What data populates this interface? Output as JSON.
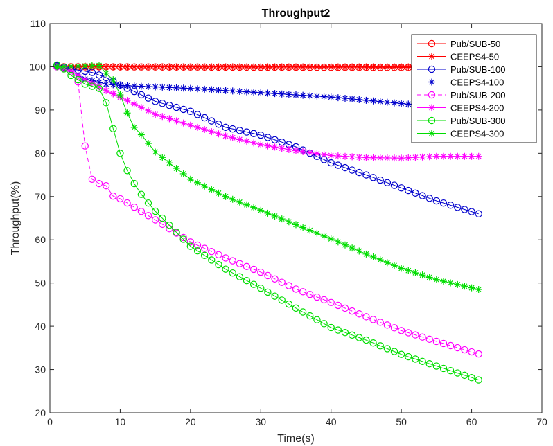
{
  "chart_data": {
    "type": "line",
    "title": "Throughput2",
    "xlabel": "Time(s)",
    "ylabel": "Throughput(%)",
    "xlim": [
      0,
      70
    ],
    "ylim": [
      20,
      110
    ],
    "xticks": [
      0,
      10,
      20,
      30,
      40,
      50,
      60,
      70
    ],
    "yticks": [
      20,
      30,
      40,
      50,
      60,
      70,
      80,
      90,
      100,
      110
    ],
    "grid": false,
    "legend_position": "top-right",
    "series": [
      {
        "name": "Pub/SUB-50",
        "color": "#ff0000",
        "marker": "circle",
        "line": "solid",
        "knots": [
          [
            1,
            100.3
          ],
          [
            2,
            100
          ],
          [
            61,
            99.8
          ]
        ],
        "start": 1,
        "end": 61
      },
      {
        "name": "CEEPS4-50",
        "color": "#ff0000",
        "marker": "star",
        "line": "solid",
        "knots": [
          [
            1,
            100.2
          ],
          [
            2,
            100
          ],
          [
            61,
            100
          ]
        ],
        "start": 1,
        "end": 61
      },
      {
        "name": "Pub/SUB-100",
        "color": "#0000cc",
        "marker": "circle",
        "line": "solid",
        "knots": [
          [
            1,
            100.2
          ],
          [
            3,
            99.5
          ],
          [
            6,
            98.7
          ],
          [
            8,
            97.5
          ],
          [
            10,
            95.8
          ],
          [
            15,
            92
          ],
          [
            20,
            89.7
          ],
          [
            25,
            86
          ],
          [
            30,
            84.2
          ],
          [
            35,
            81.5
          ],
          [
            40,
            77.8
          ],
          [
            45,
            75
          ],
          [
            50,
            72
          ],
          [
            55,
            69
          ],
          [
            61,
            66
          ]
        ],
        "start": 1,
        "end": 61
      },
      {
        "name": "CEEPS4-100",
        "color": "#0000cc",
        "marker": "star",
        "line": "solid",
        "knots": [
          [
            1,
            100.2
          ],
          [
            3,
            99
          ],
          [
            5,
            97.2
          ],
          [
            8,
            96
          ],
          [
            10,
            95.7
          ],
          [
            20,
            95
          ],
          [
            30,
            94
          ],
          [
            40,
            93
          ],
          [
            50,
            91.5
          ],
          [
            55,
            90.8
          ]
        ],
        "start": 1,
        "end": 55
      },
      {
        "name": "Pub/SUB-200",
        "color": "#ff00ff",
        "marker": "circle",
        "line": "dashed",
        "knots": [
          [
            1,
            100
          ],
          [
            2,
            99.6
          ],
          [
            3,
            98.8
          ],
          [
            4,
            96.5
          ],
          [
            5,
            81.7
          ],
          [
            6,
            74
          ],
          [
            7,
            73
          ],
          [
            8,
            72.5
          ],
          [
            9,
            70.1
          ],
          [
            10,
            69.5
          ],
          [
            15,
            64.6
          ],
          [
            20,
            59.5
          ],
          [
            25,
            55.8
          ],
          [
            30,
            52.5
          ],
          [
            35,
            48.6
          ],
          [
            40,
            45.5
          ],
          [
            45,
            42.2
          ],
          [
            50,
            39
          ],
          [
            55,
            36.5
          ],
          [
            61,
            33.6
          ]
        ],
        "start": 1,
        "end": 61
      },
      {
        "name": "CEEPS4-200",
        "color": "#ff00ff",
        "marker": "star",
        "line": "solid",
        "knots": [
          [
            1,
            100
          ],
          [
            3,
            99
          ],
          [
            5,
            97
          ],
          [
            8,
            94.5
          ],
          [
            10,
            93
          ],
          [
            15,
            89
          ],
          [
            20,
            86.5
          ],
          [
            25,
            84
          ],
          [
            30,
            82
          ],
          [
            35,
            80.6
          ],
          [
            40,
            79.5
          ],
          [
            45,
            79
          ],
          [
            50,
            78.9
          ],
          [
            55,
            79.3
          ],
          [
            61,
            79.3
          ]
        ],
        "start": 1,
        "end": 61
      },
      {
        "name": "Pub/SUB-300",
        "color": "#00dd00",
        "marker": "circle",
        "line": "solid",
        "knots": [
          [
            1,
            100.4
          ],
          [
            2,
            99.5
          ],
          [
            3,
            98
          ],
          [
            4,
            97
          ],
          [
            5,
            96
          ],
          [
            6,
            95.5
          ],
          [
            7,
            95
          ],
          [
            8,
            91.7
          ],
          [
            9,
            85.7
          ],
          [
            10,
            80
          ],
          [
            11,
            76
          ],
          [
            12,
            73
          ],
          [
            13,
            70.5
          ],
          [
            14,
            68.5
          ],
          [
            15,
            66.6
          ],
          [
            20,
            58.5
          ],
          [
            25,
            53.2
          ],
          [
            30,
            48.8
          ],
          [
            35,
            44.2
          ],
          [
            40,
            39.7
          ],
          [
            45,
            36.8
          ],
          [
            50,
            33.5
          ],
          [
            55,
            30.8
          ],
          [
            61,
            27.6
          ]
        ],
        "start": 1,
        "end": 61
      },
      {
        "name": "CEEPS4-300",
        "color": "#00dd00",
        "marker": "star",
        "line": "solid",
        "knots": [
          [
            1,
            100
          ],
          [
            7,
            100.3
          ],
          [
            8,
            98.5
          ],
          [
            9,
            97
          ],
          [
            10,
            93.5
          ],
          [
            11,
            89.3
          ],
          [
            12,
            86
          ],
          [
            13,
            84.3
          ],
          [
            15,
            80.3
          ],
          [
            20,
            74
          ],
          [
            25,
            70
          ],
          [
            30,
            66.8
          ],
          [
            35,
            63.5
          ],
          [
            40,
            60.2
          ],
          [
            45,
            56.7
          ],
          [
            50,
            53.4
          ],
          [
            55,
            50.8
          ],
          [
            61,
            48.5
          ]
        ],
        "start": 1,
        "end": 61
      }
    ]
  }
}
